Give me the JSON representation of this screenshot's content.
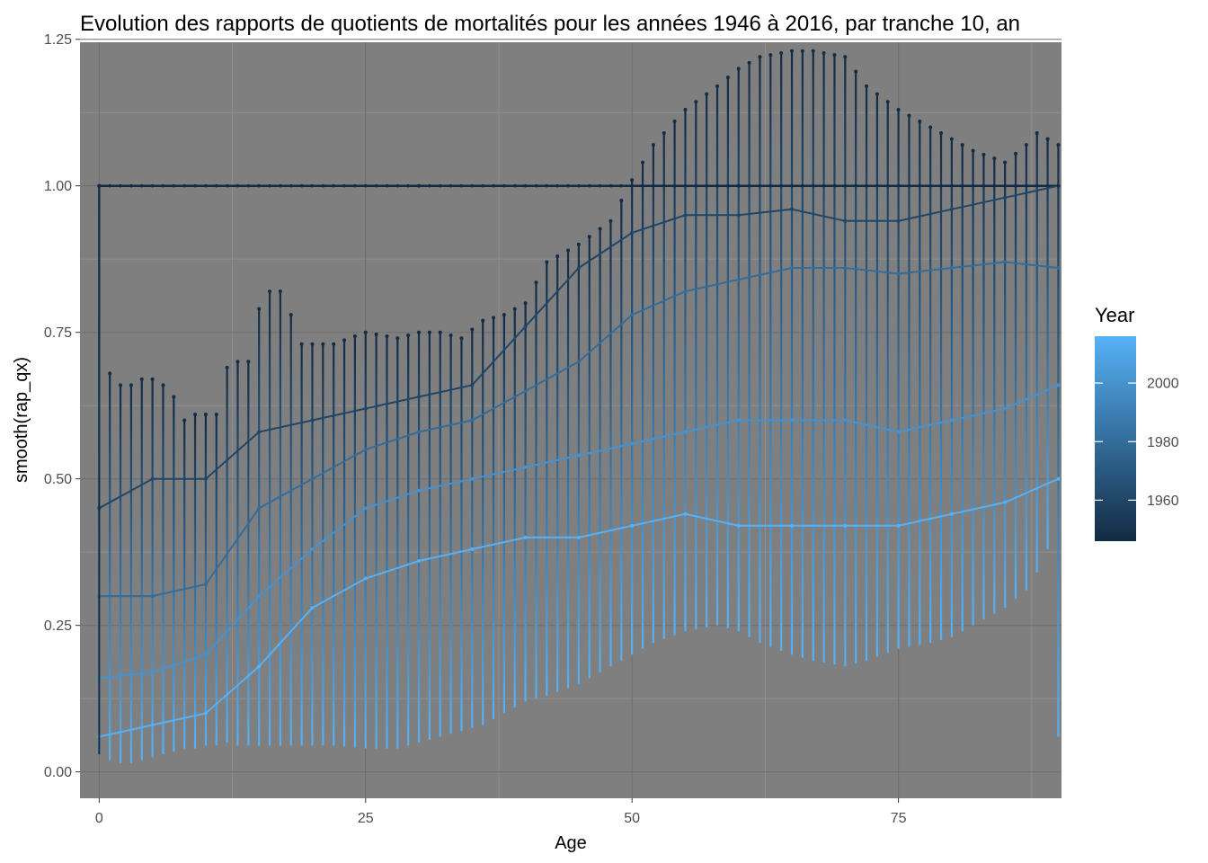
{
  "chart_data": {
    "type": "line",
    "title": "Evolution des rapports de quotients de mortalités pour les années 1946 à 2016, par tranche 10, an",
    "xlabel": "Age",
    "ylabel": "smooth(rap_qx)",
    "xlim": [
      -1.8,
      90.3
    ],
    "ylim": [
      -0.045,
      1.245
    ],
    "x_ticks": [
      0,
      25,
      50,
      75
    ],
    "x_tick_labels": [
      "0",
      "25",
      "50",
      "75"
    ],
    "y_ticks": [
      0,
      0.25,
      0.5,
      0.75,
      1.0,
      1.25
    ],
    "y_tick_labels": [
      "0.00",
      "0.25",
      "0.50",
      "0.75",
      "1.00",
      "1.25"
    ],
    "grid": true,
    "panel_background": "#7f7f7f",
    "legend": {
      "title": "Year",
      "position": "right",
      "type": "colorbar",
      "range": [
        1946,
        2016
      ],
      "ticks": [
        1960,
        1980,
        2000
      ],
      "tick_labels": [
        "1960",
        "1980",
        "2000"
      ],
      "color_low": "#132b43",
      "color_high": "#56b1f7"
    },
    "age_range": [
      0,
      90
    ],
    "year_range": [
      1946,
      2016
    ],
    "reference_line_y": 1.0,
    "envelope": {
      "ages": [
        0,
        1,
        2,
        3,
        4,
        5,
        6,
        7,
        8,
        9,
        10,
        11,
        12,
        13,
        14,
        15,
        16,
        17,
        18,
        19,
        20,
        22,
        25,
        28,
        30,
        32,
        34,
        36,
        38,
        40,
        42,
        45,
        48,
        50,
        52,
        55,
        58,
        60,
        62,
        65,
        67,
        70,
        72,
        75,
        78,
        80,
        82,
        85,
        87,
        88,
        89,
        90
      ],
      "max_ratio": [
        0.94,
        0.68,
        0.66,
        0.66,
        0.67,
        0.67,
        0.66,
        0.64,
        0.6,
        0.61,
        0.61,
        0.61,
        0.69,
        0.7,
        0.7,
        0.79,
        0.82,
        0.82,
        0.78,
        0.73,
        0.73,
        0.73,
        0.75,
        0.74,
        0.75,
        0.75,
        0.74,
        0.77,
        0.78,
        0.8,
        0.87,
        0.9,
        0.94,
        1.01,
        1.07,
        1.13,
        1.17,
        1.2,
        1.22,
        1.23,
        1.23,
        1.22,
        1.17,
        1.13,
        1.1,
        1.08,
        1.06,
        1.04,
        1.07,
        1.09,
        1.08,
        1.07
      ],
      "min_ratio": [
        0.03,
        0.02,
        0.015,
        0.015,
        0.02,
        0.025,
        0.03,
        0.035,
        0.04,
        0.04,
        0.045,
        0.045,
        0.05,
        0.045,
        0.045,
        0.045,
        0.045,
        0.045,
        0.045,
        0.045,
        0.045,
        0.045,
        0.04,
        0.04,
        0.05,
        0.06,
        0.07,
        0.08,
        0.1,
        0.12,
        0.13,
        0.15,
        0.18,
        0.2,
        0.22,
        0.24,
        0.25,
        0.24,
        0.22,
        0.2,
        0.19,
        0.18,
        0.19,
        0.21,
        0.22,
        0.23,
        0.25,
        0.28,
        0.31,
        0.34,
        0.38,
        0.06
      ]
    },
    "series": [
      {
        "year": 1946,
        "values": [
          [
            0,
            1.0
          ],
          [
            30,
            1.0
          ],
          [
            60,
            1.0
          ],
          [
            90,
            1.0
          ]
        ]
      },
      {
        "year": 1960,
        "values": [
          [
            0,
            0.45
          ],
          [
            5,
            0.5
          ],
          [
            10,
            0.5
          ],
          [
            15,
            0.58
          ],
          [
            20,
            0.6
          ],
          [
            25,
            0.62
          ],
          [
            30,
            0.64
          ],
          [
            35,
            0.66
          ],
          [
            40,
            0.76
          ],
          [
            45,
            0.86
          ],
          [
            50,
            0.92
          ],
          [
            55,
            0.95
          ],
          [
            60,
            0.95
          ],
          [
            65,
            0.96
          ],
          [
            70,
            0.94
          ],
          [
            75,
            0.94
          ],
          [
            80,
            0.96
          ],
          [
            85,
            0.98
          ],
          [
            90,
            1.0
          ]
        ]
      },
      {
        "year": 1980,
        "values": [
          [
            0,
            0.3
          ],
          [
            5,
            0.3
          ],
          [
            10,
            0.32
          ],
          [
            15,
            0.45
          ],
          [
            20,
            0.5
          ],
          [
            25,
            0.55
          ],
          [
            30,
            0.58
          ],
          [
            35,
            0.6
          ],
          [
            40,
            0.65
          ],
          [
            45,
            0.7
          ],
          [
            50,
            0.78
          ],
          [
            55,
            0.82
          ],
          [
            60,
            0.84
          ],
          [
            65,
            0.86
          ],
          [
            70,
            0.86
          ],
          [
            75,
            0.85
          ],
          [
            80,
            0.86
          ],
          [
            85,
            0.87
          ],
          [
            90,
            0.86
          ]
        ]
      },
      {
        "year": 2000,
        "values": [
          [
            0,
            0.16
          ],
          [
            5,
            0.17
          ],
          [
            10,
            0.2
          ],
          [
            15,
            0.3
          ],
          [
            20,
            0.38
          ],
          [
            25,
            0.45
          ],
          [
            30,
            0.48
          ],
          [
            35,
            0.5
          ],
          [
            40,
            0.52
          ],
          [
            45,
            0.54
          ],
          [
            50,
            0.56
          ],
          [
            55,
            0.58
          ],
          [
            60,
            0.6
          ],
          [
            65,
            0.6
          ],
          [
            70,
            0.6
          ],
          [
            75,
            0.58
          ],
          [
            80,
            0.6
          ],
          [
            85,
            0.62
          ],
          [
            90,
            0.66
          ]
        ]
      },
      {
        "year": 2016,
        "values": [
          [
            0,
            0.06
          ],
          [
            5,
            0.08
          ],
          [
            10,
            0.1
          ],
          [
            15,
            0.18
          ],
          [
            20,
            0.28
          ],
          [
            25,
            0.33
          ],
          [
            30,
            0.36
          ],
          [
            35,
            0.38
          ],
          [
            40,
            0.4
          ],
          [
            45,
            0.4
          ],
          [
            50,
            0.42
          ],
          [
            55,
            0.44
          ],
          [
            60,
            0.42
          ],
          [
            65,
            0.42
          ],
          [
            70,
            0.42
          ],
          [
            75,
            0.42
          ],
          [
            80,
            0.44
          ],
          [
            85,
            0.46
          ],
          [
            90,
            0.5
          ]
        ]
      }
    ]
  }
}
